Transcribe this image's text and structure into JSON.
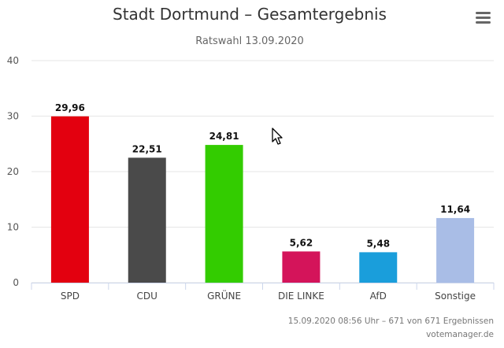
{
  "chart_data": {
    "type": "bar",
    "title": "Stadt Dortmund – Gesamtergebnis",
    "subtitle": "Ratswahl 13.09.2020",
    "categories": [
      "SPD",
      "CDU",
      "GRÜNE",
      "DIE LINKE",
      "AfD",
      "Sonstige"
    ],
    "values": [
      29.96,
      22.51,
      24.81,
      5.62,
      5.48,
      11.64
    ],
    "value_labels": [
      "29,96",
      "22,51",
      "24,81",
      "5,62",
      "5,48",
      "11,64"
    ],
    "colors": [
      "#e3000f",
      "#4a4a4a",
      "#33cc00",
      "#d4145a",
      "#1a9edb",
      "#a9bde6"
    ],
    "ylim": [
      0,
      40
    ],
    "yticks": [
      0,
      10,
      20,
      30,
      40
    ],
    "grid": true,
    "xlabel": "",
    "ylabel": ""
  },
  "footer": {
    "status": "15.09.2020 08:56 Uhr – 671 von 671 Ergebnissen",
    "source": "votemanager.de"
  },
  "icons": {
    "menu": "hamburger-menu-icon"
  }
}
